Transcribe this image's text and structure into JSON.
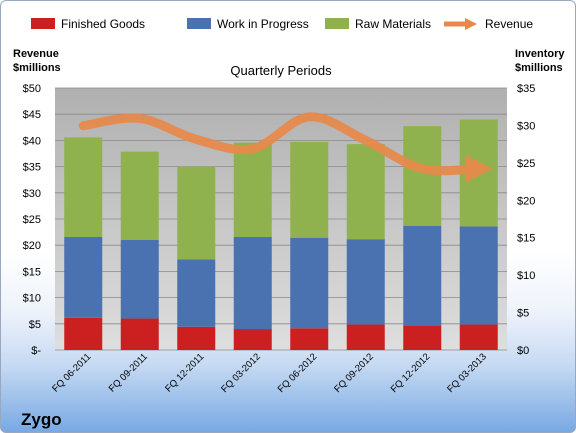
{
  "chart_data": {
    "type": "bar",
    "subtype": "stacked-bar with line overlay",
    "title": "Quarterly Periods",
    "brand": "Zygo",
    "categories": [
      "FQ 06-2011",
      "FQ 09-2011",
      "FQ 12-2011",
      "FQ 03-2012",
      "FQ 06-2012",
      "FQ 09-2012",
      "FQ 12-2012",
      "FQ 03-2013"
    ],
    "left_axis": {
      "label_line1": "Revenue",
      "label_line2": "$millions",
      "ylim": [
        0,
        50
      ],
      "ticks": [
        0,
        5,
        10,
        15,
        20,
        25,
        30,
        35,
        40,
        45,
        50
      ],
      "tick_labels": [
        "$-",
        "$5",
        "$10",
        "$15",
        "$20",
        "$25",
        "$30",
        "$35",
        "$40",
        "$45",
        "$50"
      ]
    },
    "right_axis": {
      "label_line1": "Inventory",
      "label_line2": "$millions",
      "ylim": [
        0,
        35
      ],
      "ticks": [
        0,
        5,
        10,
        15,
        20,
        25,
        30,
        35
      ],
      "tick_labels": [
        "$0",
        "$5",
        "$10",
        "$15",
        "$20",
        "$25",
        "$30",
        "$35"
      ]
    },
    "series": [
      {
        "name": "Finished Goods",
        "axis": "right",
        "kind": "bar",
        "color": "#cc1f1f",
        "values": [
          4.3,
          4.2,
          3.1,
          2.8,
          2.9,
          3.4,
          3.3,
          3.4
        ]
      },
      {
        "name": "Work in Progress",
        "axis": "right",
        "kind": "bar",
        "color": "#4a72b0",
        "values": [
          10.8,
          10.5,
          9.0,
          12.3,
          12.1,
          11.4,
          13.3,
          13.1
        ]
      },
      {
        "name": "Raw Materials",
        "axis": "right",
        "kind": "bar",
        "color": "#8fb24f",
        "values": [
          13.3,
          11.8,
          12.4,
          12.6,
          12.8,
          12.7,
          13.3,
          14.3
        ]
      },
      {
        "name": "Revenue",
        "axis": "left",
        "kind": "line",
        "color": "#e8894a",
        "values": [
          42.8,
          44.2,
          40.2,
          38.4,
          44.5,
          40.0,
          34.6,
          34.6
        ]
      }
    ],
    "grid": true,
    "legend_position": "top"
  }
}
